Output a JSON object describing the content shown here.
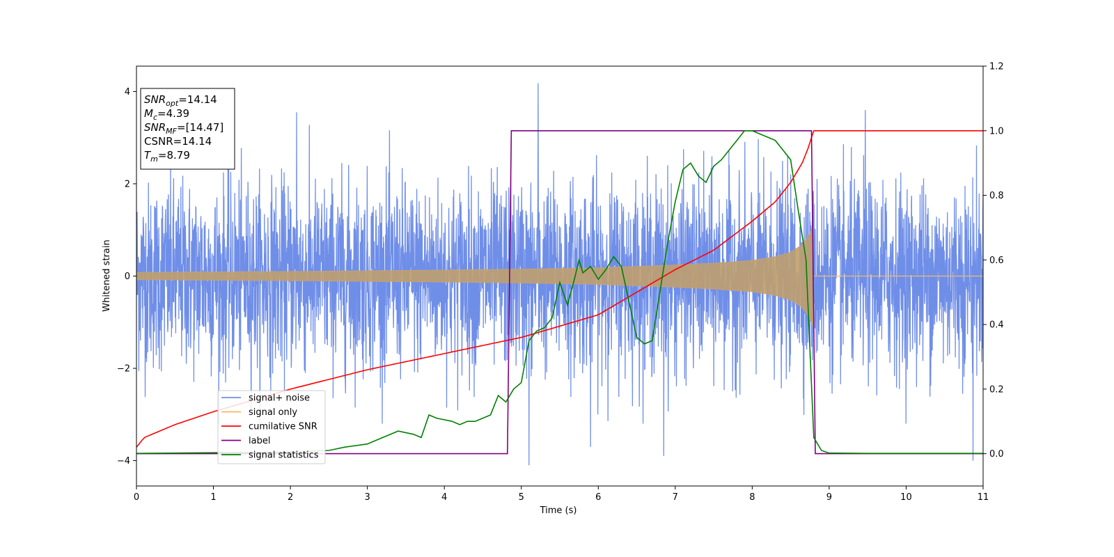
{
  "chart_data": {
    "type": "line",
    "xlabel": "Time (s)",
    "ylabel": "Whitened strain",
    "xlim": [
      0,
      11
    ],
    "ylim_left": [
      -4.55,
      4.55
    ],
    "ylim_right": [
      -0.1,
      1.2
    ],
    "x_ticks": [
      0,
      1,
      2,
      3,
      4,
      5,
      6,
      7,
      8,
      9,
      10,
      11
    ],
    "y_ticks_left": [
      -4,
      -2,
      0,
      2,
      4
    ],
    "y_ticks_right": [
      0.0,
      0.2,
      0.4,
      0.6,
      0.8,
      1.0,
      1.2
    ],
    "y_tick_labels_left": [
      "−4",
      "−2",
      "0",
      "2",
      "4"
    ],
    "y_tick_labels_right": [
      "0.0",
      "0.2",
      "0.4",
      "0.6",
      "0.8",
      "1.0",
      "1.2"
    ],
    "grid": false,
    "legend_position": "lower-left",
    "annotation": {
      "position": "top-left",
      "lines": [
        {
          "base": "SNR",
          "sub": "opt",
          "rest": "=14.14"
        },
        {
          "base": "M",
          "sub": "c",
          "rest": "=4.39"
        },
        {
          "base": "SNR",
          "sub": "MF",
          "rest": "=[14.47]"
        },
        {
          "base": "CSNR",
          "sub": "",
          "rest": "=14.14"
        },
        {
          "base": "T",
          "sub": "m",
          "rest": "=8.79"
        }
      ]
    },
    "series": [
      {
        "name": "signal+ noise",
        "color": "#6f8ee8",
        "axis": "left",
        "description_values": {
          "noise_std": 1.0,
          "spike_max": 4.18,
          "spike_min": -4.1
        }
      },
      {
        "name": "signal only",
        "color": "#f5b95d",
        "axis": "left",
        "envelope": {
          "x": [
            0,
            2,
            4,
            5,
            6,
            7,
            7.5,
            8,
            8.3,
            8.5,
            8.65,
            8.75,
            8.79
          ],
          "amp": [
            0.08,
            0.1,
            0.13,
            0.15,
            0.18,
            0.24,
            0.28,
            0.34,
            0.42,
            0.52,
            0.68,
            0.92,
            1.1
          ]
        },
        "zero_after": 8.79
      },
      {
        "name": "cumilative SNR",
        "color": "#ff0000",
        "axis": "right",
        "x": [
          0,
          0.1,
          0.5,
          1,
          2,
          3,
          4,
          5,
          6,
          7,
          7.5,
          8,
          8.3,
          8.5,
          8.65,
          8.75,
          8.79,
          11
        ],
        "y": [
          0.02,
          0.05,
          0.09,
          0.13,
          0.2,
          0.26,
          0.31,
          0.36,
          0.43,
          0.57,
          0.63,
          0.72,
          0.78,
          0.84,
          0.9,
          0.96,
          1.0,
          1.0
        ]
      },
      {
        "name": "label",
        "color": "#800080",
        "axis": "right",
        "x": [
          0,
          4.82,
          4.87,
          8.77,
          8.82,
          11
        ],
        "y": [
          0,
          0,
          1,
          1,
          0,
          0
        ]
      },
      {
        "name": "signal statistics",
        "color": "#008000",
        "axis": "right",
        "x": [
          0,
          1,
          2,
          2.5,
          2.7,
          3,
          3.2,
          3.4,
          3.6,
          3.7,
          3.8,
          3.9,
          4.1,
          4.2,
          4.3,
          4.4,
          4.5,
          4.6,
          4.7,
          4.8,
          4.9,
          5.0,
          5.1,
          5.2,
          5.3,
          5.4,
          5.5,
          5.6,
          5.7,
          5.75,
          5.8,
          5.9,
          6.0,
          6.1,
          6.2,
          6.3,
          6.4,
          6.5,
          6.6,
          6.7,
          6.8,
          6.9,
          7.0,
          7.1,
          7.2,
          7.3,
          7.4,
          7.5,
          7.6,
          7.7,
          7.8,
          7.9,
          8.0,
          8.1,
          8.2,
          8.3,
          8.4,
          8.5,
          8.6,
          8.7,
          8.8,
          8.9,
          9.0,
          9.5,
          11
        ],
        "y": [
          0.001,
          0.003,
          0.005,
          0.01,
          0.02,
          0.03,
          0.05,
          0.07,
          0.06,
          0.05,
          0.12,
          0.11,
          0.1,
          0.09,
          0.1,
          0.1,
          0.11,
          0.12,
          0.18,
          0.16,
          0.2,
          0.22,
          0.35,
          0.38,
          0.39,
          0.42,
          0.53,
          0.46,
          0.55,
          0.6,
          0.56,
          0.58,
          0.54,
          0.57,
          0.61,
          0.58,
          0.47,
          0.36,
          0.34,
          0.35,
          0.5,
          0.65,
          0.78,
          0.88,
          0.9,
          0.86,
          0.84,
          0.89,
          0.91,
          0.94,
          0.97,
          1.0,
          1.0,
          0.99,
          0.98,
          0.97,
          0.94,
          0.91,
          0.75,
          0.6,
          0.05,
          0.01,
          0.002,
          0.001,
          0.001
        ]
      }
    ]
  }
}
